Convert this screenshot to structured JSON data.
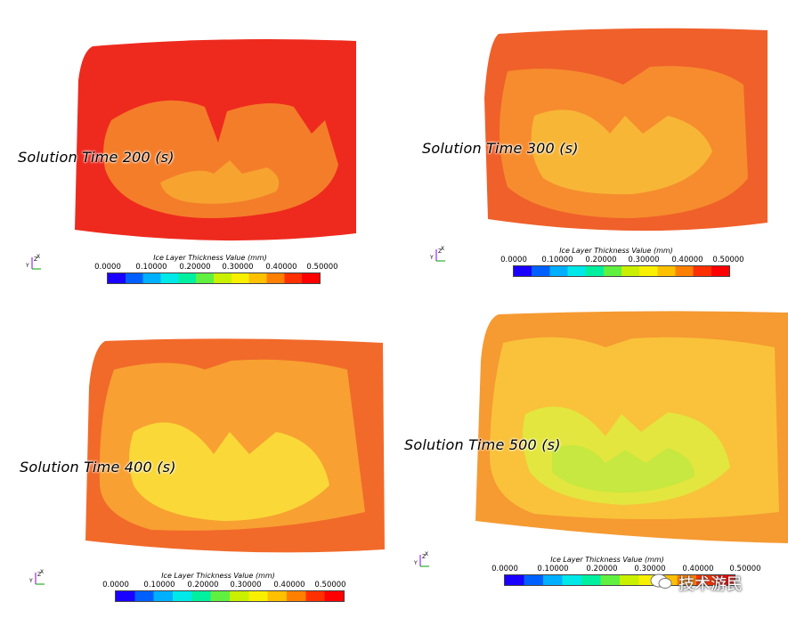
{
  "legend": {
    "title": "Ice Layer Thickness Value (mm)",
    "ticks": [
      "0.0000",
      "0.10000",
      "0.20000",
      "0.30000",
      "0.40000",
      "0.50000"
    ],
    "colormap": [
      "#1a00ff",
      "#0060ff",
      "#00b0ff",
      "#00e8e8",
      "#00f0a0",
      "#60f040",
      "#c8f000",
      "#f8f000",
      "#ffc000",
      "#ff8000",
      "#ff3000",
      "#ff0000"
    ]
  },
  "axes_labels": {
    "y": "Y",
    "z": "Z",
    "x": "X"
  },
  "panels": [
    {
      "id": "t200",
      "label": "Solution Time 200 (s)",
      "outer_color": "#ee2a1e",
      "mid_color": "#f47d2a",
      "inner_color": "#f6a330"
    },
    {
      "id": "t300",
      "label": "Solution Time 300 (s)",
      "outer_color": "#f0602a",
      "mid_color": "#f68c2e",
      "inner_color": "#f8b636"
    },
    {
      "id": "t400",
      "label": "Solution Time 400 (s)",
      "outer_color": "#f16a2a",
      "mid_color": "#f8a032",
      "inner_color": "#fad838"
    },
    {
      "id": "t500",
      "label": "Solution Time 500 (s)",
      "outer_color": "#f69a32",
      "mid_color": "#f9c23a",
      "inner_color": "#c6e840"
    }
  ],
  "watermark": {
    "text": "技术游民"
  }
}
